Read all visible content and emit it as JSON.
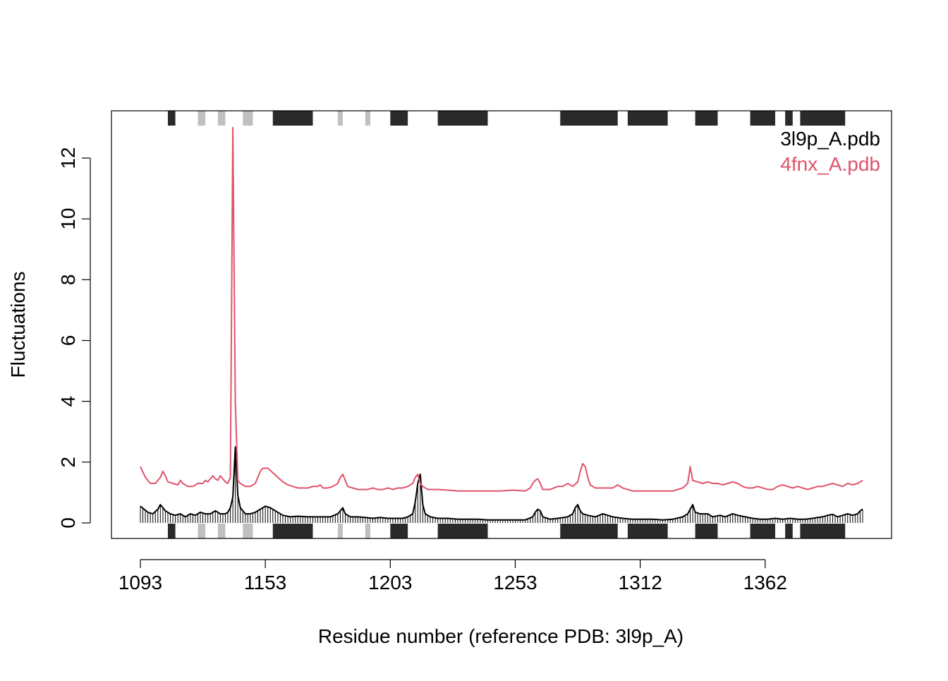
{
  "chart_data": {
    "type": "line",
    "title": "",
    "xlabel": "Residue number (reference PDB: 3l9p_A)",
    "ylabel": "Fluctuations",
    "xlim": [
      1,
      290
    ],
    "ylim": [
      0,
      13
    ],
    "x_tick_positions": [
      1,
      51,
      101,
      151,
      201,
      251
    ],
    "x_tick_labels": [
      "1093",
      "1153",
      "1203",
      "1253",
      "1312",
      "1362"
    ],
    "y_ticks": [
      0,
      2,
      4,
      6,
      8,
      10,
      12
    ],
    "y_tick_labels": [
      "0",
      "2",
      "4",
      "6",
      "8",
      "10",
      "12"
    ],
    "legend": {
      "position": "top-right"
    },
    "series": [
      {
        "name": "3l9p_A.pdb",
        "color": "#000000",
        "style": "line-with-drop-lines",
        "points": [
          [
            1,
            0.55
          ],
          [
            4,
            0.35
          ],
          [
            6,
            0.3
          ],
          [
            8,
            0.45
          ],
          [
            9,
            0.6
          ],
          [
            11,
            0.4
          ],
          [
            13,
            0.3
          ],
          [
            15,
            0.25
          ],
          [
            17,
            0.3
          ],
          [
            19,
            0.2
          ],
          [
            21,
            0.3
          ],
          [
            23,
            0.25
          ],
          [
            25,
            0.35
          ],
          [
            27,
            0.3
          ],
          [
            29,
            0.3
          ],
          [
            31,
            0.4
          ],
          [
            33,
            0.3
          ],
          [
            35,
            0.3
          ],
          [
            36,
            0.35
          ],
          [
            37,
            0.5
          ],
          [
            38,
            0.85
          ],
          [
            39,
            2.5
          ],
          [
            40,
            0.9
          ],
          [
            41,
            0.5
          ],
          [
            43,
            0.3
          ],
          [
            45,
            0.3
          ],
          [
            47,
            0.35
          ],
          [
            49,
            0.45
          ],
          [
            51,
            0.55
          ],
          [
            53,
            0.5
          ],
          [
            55,
            0.4
          ],
          [
            58,
            0.25
          ],
          [
            61,
            0.2
          ],
          [
            64,
            0.22
          ],
          [
            68,
            0.2
          ],
          [
            71,
            0.2
          ],
          [
            74,
            0.2
          ],
          [
            77,
            0.2
          ],
          [
            80,
            0.3
          ],
          [
            81,
            0.4
          ],
          [
            82,
            0.5
          ],
          [
            83,
            0.3
          ],
          [
            85,
            0.2
          ],
          [
            88,
            0.2
          ],
          [
            91,
            0.18
          ],
          [
            94,
            0.15
          ],
          [
            97,
            0.18
          ],
          [
            100,
            0.15
          ],
          [
            103,
            0.15
          ],
          [
            106,
            0.15
          ],
          [
            108,
            0.2
          ],
          [
            110,
            0.3
          ],
          [
            111,
            0.7
          ],
          [
            112,
            1.3
          ],
          [
            113,
            1.6
          ],
          [
            114,
            0.6
          ],
          [
            115,
            0.3
          ],
          [
            117,
            0.2
          ],
          [
            120,
            0.15
          ],
          [
            124,
            0.15
          ],
          [
            128,
            0.12
          ],
          [
            132,
            0.12
          ],
          [
            136,
            0.12
          ],
          [
            140,
            0.1
          ],
          [
            145,
            0.1
          ],
          [
            150,
            0.1
          ],
          [
            155,
            0.1
          ],
          [
            158,
            0.2
          ],
          [
            159,
            0.35
          ],
          [
            160,
            0.45
          ],
          [
            161,
            0.4
          ],
          [
            162,
            0.2
          ],
          [
            165,
            0.12
          ],
          [
            168,
            0.15
          ],
          [
            172,
            0.2
          ],
          [
            174,
            0.3
          ],
          [
            175,
            0.5
          ],
          [
            176,
            0.6
          ],
          [
            177,
            0.4
          ],
          [
            178,
            0.3
          ],
          [
            180,
            0.25
          ],
          [
            183,
            0.2
          ],
          [
            186,
            0.3
          ],
          [
            188,
            0.25
          ],
          [
            190,
            0.2
          ],
          [
            194,
            0.15
          ],
          [
            198,
            0.12
          ],
          [
            202,
            0.12
          ],
          [
            206,
            0.12
          ],
          [
            210,
            0.1
          ],
          [
            214,
            0.12
          ],
          [
            218,
            0.2
          ],
          [
            220,
            0.3
          ],
          [
            221,
            0.45
          ],
          [
            222,
            0.6
          ],
          [
            223,
            0.35
          ],
          [
            225,
            0.3
          ],
          [
            228,
            0.3
          ],
          [
            230,
            0.2
          ],
          [
            233,
            0.25
          ],
          [
            235,
            0.2
          ],
          [
            238,
            0.3
          ],
          [
            240,
            0.25
          ],
          [
            243,
            0.2
          ],
          [
            246,
            0.15
          ],
          [
            249,
            0.12
          ],
          [
            252,
            0.12
          ],
          [
            255,
            0.15
          ],
          [
            258,
            0.12
          ],
          [
            261,
            0.15
          ],
          [
            264,
            0.12
          ],
          [
            267,
            0.12
          ],
          [
            270,
            0.15
          ],
          [
            272,
            0.18
          ],
          [
            274,
            0.2
          ],
          [
            276,
            0.25
          ],
          [
            278,
            0.28
          ],
          [
            280,
            0.2
          ],
          [
            282,
            0.25
          ],
          [
            284,
            0.3
          ],
          [
            286,
            0.25
          ],
          [
            288,
            0.3
          ],
          [
            289,
            0.4
          ],
          [
            290,
            0.45
          ]
        ]
      },
      {
        "name": "4fnx_A.pdb",
        "color": "#DF536B",
        "style": "line",
        "points": [
          [
            1,
            1.85
          ],
          [
            3,
            1.5
          ],
          [
            5,
            1.3
          ],
          [
            7,
            1.3
          ],
          [
            8,
            1.4
          ],
          [
            9,
            1.5
          ],
          [
            10,
            1.7
          ],
          [
            11,
            1.55
          ],
          [
            12,
            1.35
          ],
          [
            14,
            1.3
          ],
          [
            16,
            1.25
          ],
          [
            17,
            1.4
          ],
          [
            18,
            1.3
          ],
          [
            20,
            1.2
          ],
          [
            22,
            1.2
          ],
          [
            24,
            1.3
          ],
          [
            26,
            1.3
          ],
          [
            27,
            1.4
          ],
          [
            28,
            1.35
          ],
          [
            29,
            1.45
          ],
          [
            30,
            1.55
          ],
          [
            31,
            1.45
          ],
          [
            32,
            1.4
          ],
          [
            33,
            1.55
          ],
          [
            34,
            1.45
          ],
          [
            35,
            1.35
          ],
          [
            36,
            1.3
          ],
          [
            37,
            1.5
          ],
          [
            38,
            13.0
          ],
          [
            39,
            4.0
          ],
          [
            40,
            1.4
          ],
          [
            41,
            1.3
          ],
          [
            42,
            1.25
          ],
          [
            43,
            1.2
          ],
          [
            45,
            1.2
          ],
          [
            47,
            1.3
          ],
          [
            48,
            1.5
          ],
          [
            49,
            1.7
          ],
          [
            50,
            1.8
          ],
          [
            52,
            1.8
          ],
          [
            54,
            1.65
          ],
          [
            56,
            1.5
          ],
          [
            58,
            1.35
          ],
          [
            60,
            1.25
          ],
          [
            62,
            1.2
          ],
          [
            64,
            1.15
          ],
          [
            66,
            1.15
          ],
          [
            68,
            1.15
          ],
          [
            70,
            1.2
          ],
          [
            72,
            1.2
          ],
          [
            73,
            1.25
          ],
          [
            74,
            1.15
          ],
          [
            76,
            1.15
          ],
          [
            78,
            1.2
          ],
          [
            80,
            1.3
          ],
          [
            81,
            1.5
          ],
          [
            82,
            1.6
          ],
          [
            83,
            1.4
          ],
          [
            84,
            1.2
          ],
          [
            86,
            1.15
          ],
          [
            88,
            1.1
          ],
          [
            90,
            1.1
          ],
          [
            92,
            1.1
          ],
          [
            94,
            1.15
          ],
          [
            96,
            1.1
          ],
          [
            98,
            1.1
          ],
          [
            100,
            1.15
          ],
          [
            102,
            1.1
          ],
          [
            104,
            1.15
          ],
          [
            106,
            1.15
          ],
          [
            108,
            1.2
          ],
          [
            110,
            1.3
          ],
          [
            111,
            1.5
          ],
          [
            112,
            1.6
          ],
          [
            113,
            1.3
          ],
          [
            114,
            1.2
          ],
          [
            116,
            1.1
          ],
          [
            118,
            1.1
          ],
          [
            120,
            1.1
          ],
          [
            124,
            1.08
          ],
          [
            128,
            1.05
          ],
          [
            132,
            1.05
          ],
          [
            136,
            1.05
          ],
          [
            140,
            1.05
          ],
          [
            145,
            1.05
          ],
          [
            150,
            1.08
          ],
          [
            155,
            1.05
          ],
          [
            157,
            1.15
          ],
          [
            158,
            1.3
          ],
          [
            159,
            1.4
          ],
          [
            160,
            1.45
          ],
          [
            161,
            1.3
          ],
          [
            162,
            1.1
          ],
          [
            165,
            1.1
          ],
          [
            168,
            1.2
          ],
          [
            170,
            1.2
          ],
          [
            172,
            1.3
          ],
          [
            174,
            1.2
          ],
          [
            176,
            1.35
          ],
          [
            177,
            1.7
          ],
          [
            178,
            1.95
          ],
          [
            179,
            1.85
          ],
          [
            180,
            1.5
          ],
          [
            181,
            1.25
          ],
          [
            183,
            1.15
          ],
          [
            186,
            1.15
          ],
          [
            188,
            1.15
          ],
          [
            190,
            1.15
          ],
          [
            192,
            1.25
          ],
          [
            194,
            1.15
          ],
          [
            196,
            1.1
          ],
          [
            198,
            1.05
          ],
          [
            202,
            1.05
          ],
          [
            206,
            1.05
          ],
          [
            210,
            1.05
          ],
          [
            214,
            1.05
          ],
          [
            218,
            1.15
          ],
          [
            220,
            1.3
          ],
          [
            221,
            1.85
          ],
          [
            222,
            1.4
          ],
          [
            224,
            1.35
          ],
          [
            226,
            1.3
          ],
          [
            228,
            1.35
          ],
          [
            230,
            1.3
          ],
          [
            232,
            1.3
          ],
          [
            234,
            1.25
          ],
          [
            236,
            1.3
          ],
          [
            238,
            1.35
          ],
          [
            240,
            1.3
          ],
          [
            242,
            1.2
          ],
          [
            244,
            1.15
          ],
          [
            246,
            1.15
          ],
          [
            248,
            1.2
          ],
          [
            250,
            1.15
          ],
          [
            252,
            1.1
          ],
          [
            254,
            1.1
          ],
          [
            256,
            1.2
          ],
          [
            258,
            1.25
          ],
          [
            260,
            1.2
          ],
          [
            262,
            1.15
          ],
          [
            264,
            1.2
          ],
          [
            266,
            1.15
          ],
          [
            268,
            1.1
          ],
          [
            270,
            1.15
          ],
          [
            272,
            1.2
          ],
          [
            274,
            1.2
          ],
          [
            276,
            1.25
          ],
          [
            278,
            1.3
          ],
          [
            280,
            1.25
          ],
          [
            282,
            1.2
          ],
          [
            284,
            1.3
          ],
          [
            286,
            1.25
          ],
          [
            288,
            1.3
          ],
          [
            290,
            1.4
          ]
        ]
      }
    ],
    "secondary_structure": {
      "helix_color": "#2A2A2A",
      "strand_color": "#C0C0C0",
      "segments": [
        {
          "type": "helix",
          "start": 12,
          "end": 15
        },
        {
          "type": "strand",
          "start": 24,
          "end": 27
        },
        {
          "type": "strand",
          "start": 32,
          "end": 35
        },
        {
          "type": "strand",
          "start": 42,
          "end": 46
        },
        {
          "type": "helix",
          "start": 54,
          "end": 70
        },
        {
          "type": "strand",
          "start": 80,
          "end": 82
        },
        {
          "type": "strand",
          "start": 91,
          "end": 93
        },
        {
          "type": "helix",
          "start": 101,
          "end": 108
        },
        {
          "type": "helix",
          "start": 120,
          "end": 140
        },
        {
          "type": "helix",
          "start": 169,
          "end": 192
        },
        {
          "type": "helix",
          "start": 196,
          "end": 212
        },
        {
          "type": "helix",
          "start": 223,
          "end": 232
        },
        {
          "type": "helix",
          "start": 245,
          "end": 255
        },
        {
          "type": "helix",
          "start": 259,
          "end": 262
        },
        {
          "type": "helix",
          "start": 265,
          "end": 283
        }
      ]
    }
  }
}
